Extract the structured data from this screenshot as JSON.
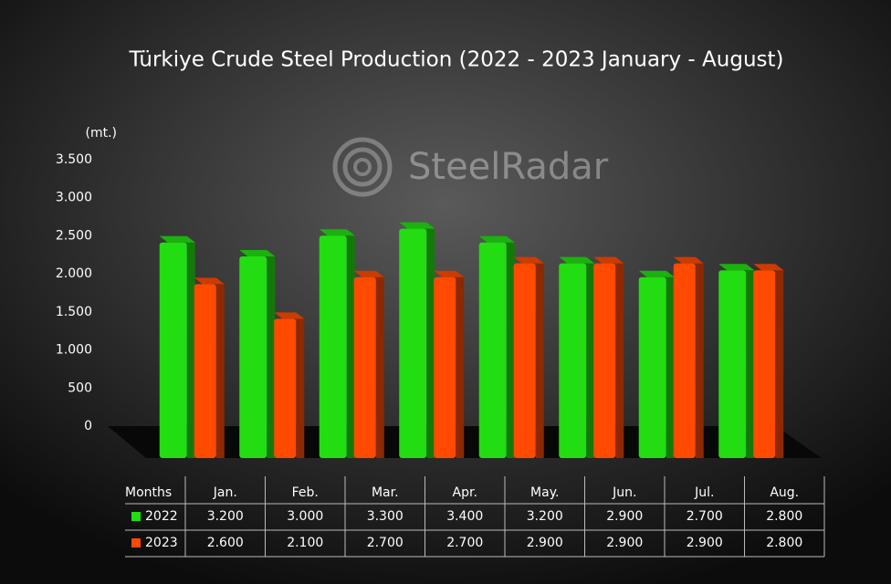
{
  "chart_data": {
    "type": "bar",
    "title": "Türkiye Crude Steel Production (2022 - 2023 January - August)",
    "unit_label": "(mt.)",
    "watermark": "SteelRadar",
    "row_header": "Months",
    "categories": [
      "Jan.",
      "Feb.",
      "Mar.",
      "Apr.",
      "May.",
      "Jun.",
      "Jul.",
      "Aug."
    ],
    "series": [
      {
        "name": "2022",
        "color": "#22dd11",
        "values": [
          3200,
          3000,
          3300,
          3400,
          3200,
          2900,
          2700,
          2800
        ],
        "value_labels": [
          "3.200",
          "3.000",
          "3.300",
          "3.400",
          "3.200",
          "2.900",
          "2.700",
          "2.800"
        ]
      },
      {
        "name": "2023",
        "color": "#ff4a00",
        "values": [
          2600,
          2100,
          2700,
          2700,
          2900,
          2900,
          2900,
          2800
        ],
        "value_labels": [
          "2.600",
          "2.100",
          "2.700",
          "2.700",
          "2.900",
          "2.900",
          "2.900",
          "2.800"
        ]
      }
    ],
    "ylim": [
      0,
      3500
    ],
    "yticks": [
      0,
      500,
      {
        "value": 1000,
        "label": "1.000"
      },
      {
        "value": 1500,
        "label": "1.500"
      },
      {
        "value": 2000,
        "label": "2.000"
      },
      {
        "value": 2500,
        "label": "2.500"
      },
      {
        "value": 3000,
        "label": "3.000"
      },
      {
        "value": 3500,
        "label": "3.500"
      }
    ]
  }
}
